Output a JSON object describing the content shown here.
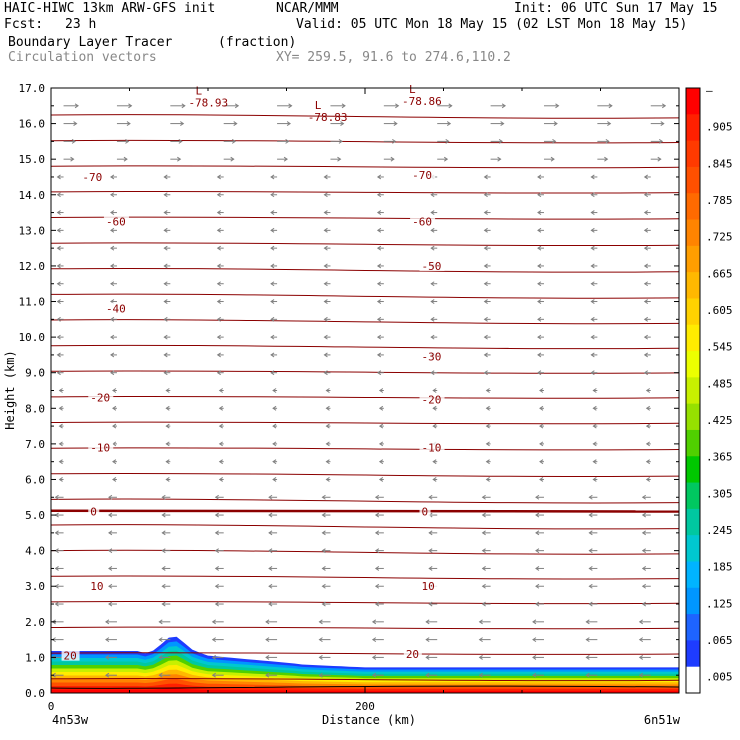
{
  "header": {
    "model": "HAIC-HIWC 13km ARW-GFS init",
    "org": "NCAR/MMM",
    "init": "Init: 06 UTC Sun 17 May 15",
    "fcst_label": "Fcst:",
    "fcst_value": "23 h",
    "valid": "Valid: 05 UTC Mon 18 May 15 (02 LST Mon 18 May 15)",
    "field": "Boundary Layer Tracer",
    "field_units": "(fraction)",
    "vectors": "Circulation vectors",
    "xy": "XY= 259.5, 91.6 to 274.6,110.2"
  },
  "colors": {
    "contour": "#8b0000",
    "vector": "#808080",
    "tracer_low": "#1e3cff",
    "tracer_high": "#ff0000"
  },
  "chart_data": {
    "type": "cross-section",
    "ylabel": "Height (km)",
    "xlabel": "Distance (km)",
    "ylim": [
      0,
      17
    ],
    "xlim": [
      0,
      400
    ],
    "y_ticks": [
      "0.0",
      "1.0",
      "2.0",
      "3.0",
      "4.0",
      "5.0",
      "6.0",
      "7.0",
      "8.0",
      "9.0",
      "10.0",
      "11.0",
      "12.0",
      "13.0",
      "14.0",
      "15.0",
      "16.0",
      "17.0"
    ],
    "x_ticks": [
      {
        "value": 0,
        "label": "0"
      },
      {
        "value": 200,
        "label": "200"
      }
    ],
    "x_end_labels": {
      "left": "4n53w",
      "right": "6n51w"
    },
    "temperature_contour_labels": [
      {
        "x": 20,
        "y": 14.5,
        "label": "-70"
      },
      {
        "x": 230,
        "y": 14.55,
        "label": "-70"
      },
      {
        "x": 35,
        "y": 13.25,
        "label": "-60"
      },
      {
        "x": 230,
        "y": 13.25,
        "label": "-60"
      },
      {
        "x": 236,
        "y": 12.0,
        "label": "-50"
      },
      {
        "x": 35,
        "y": 10.8,
        "label": "-40"
      },
      {
        "x": 236,
        "y": 9.45,
        "label": "-30"
      },
      {
        "x": 25,
        "y": 8.3,
        "label": "-20"
      },
      {
        "x": 236,
        "y": 8.25,
        "label": "-20"
      },
      {
        "x": 25,
        "y": 6.9,
        "label": "-10"
      },
      {
        "x": 236,
        "y": 6.9,
        "label": "-10"
      },
      {
        "x": 25,
        "y": 5.1,
        "label": "0"
      },
      {
        "x": 236,
        "y": 5.1,
        "label": "0"
      },
      {
        "x": 25,
        "y": 3.0,
        "label": "10"
      },
      {
        "x": 236,
        "y": 3.0,
        "label": "10"
      },
      {
        "x": 8,
        "y": 1.05,
        "label": "20"
      },
      {
        "x": 226,
        "y": 1.1,
        "label": "20"
      }
    ],
    "minimum_labels": [
      {
        "x": 92,
        "y": 16.7,
        "symbol": "L",
        "label": "-78.93"
      },
      {
        "x": 168,
        "y": 16.3,
        "symbol": "L",
        "label": "-78.83"
      },
      {
        "x": 228,
        "y": 16.75,
        "symbol": "L",
        "label": "-78.86"
      }
    ],
    "colorbar": {
      "labels": [
        "–",
        ".905",
        ".845",
        ".785",
        ".725",
        ".665",
        ".605",
        ".545",
        ".485",
        ".425",
        ".365",
        ".305",
        ".245",
        ".185",
        ".125",
        ".065",
        ".005"
      ],
      "colors": [
        "#ff0000",
        "#ff2000",
        "#ff3a00",
        "#ff5000",
        "#ff6a00",
        "#ff8400",
        "#ff9e00",
        "#ffb800",
        "#ffd200",
        "#ffec00",
        "#ecff00",
        "#c8f000",
        "#96e000",
        "#50d000",
        "#00c800",
        "#00c860",
        "#00c8a0",
        "#00c8d0",
        "#00b4ff",
        "#0096ff",
        "#1e64ff",
        "#1e3cff",
        "#ffffff"
      ]
    }
  }
}
